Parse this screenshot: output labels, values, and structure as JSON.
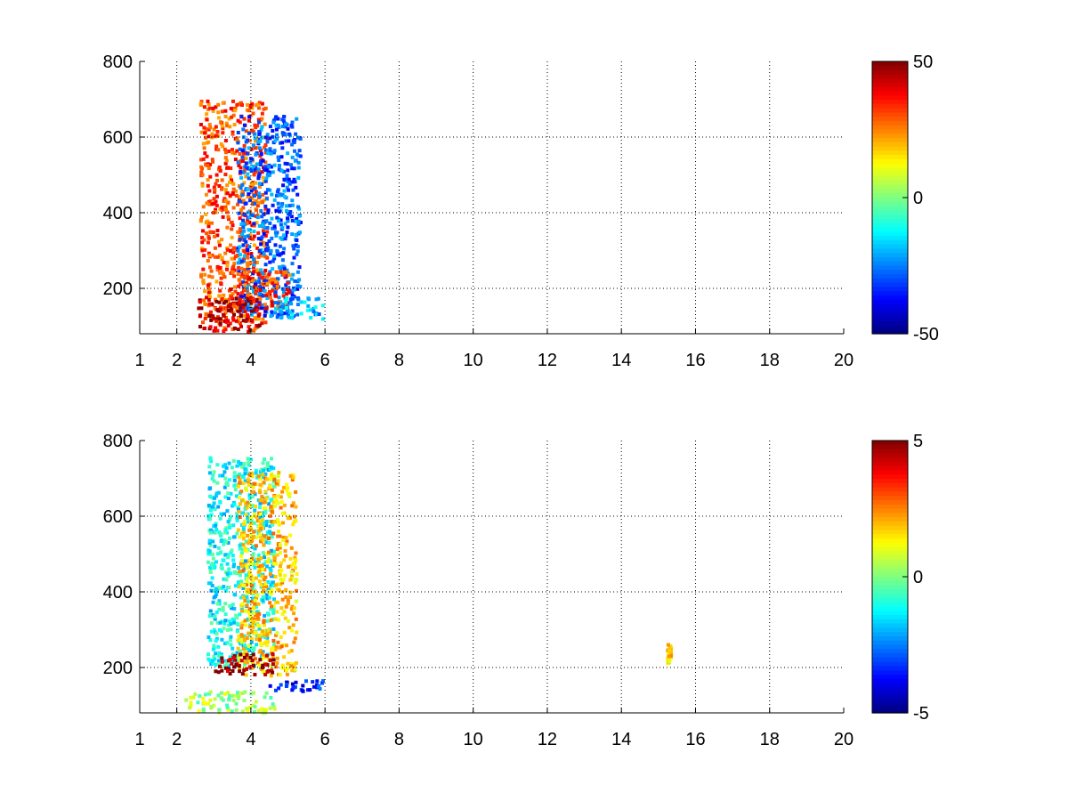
{
  "chart_data": [
    {
      "type": "heatmap",
      "title": "",
      "xlabel": "",
      "ylabel": "",
      "xlim": [
        1,
        20
      ],
      "ylim": [
        80,
        800
      ],
      "xticks": [
        1,
        2,
        4,
        6,
        8,
        10,
        12,
        14,
        16,
        18,
        20
      ],
      "xtick_labels": [
        "1",
        "2",
        "4",
        "6",
        "8",
        "10",
        "12",
        "14",
        "16",
        "18",
        "20"
      ],
      "yticks": [
        200,
        400,
        600,
        800
      ],
      "ytick_labels": [
        "200",
        "400",
        "600",
        "800"
      ],
      "grid": true,
      "colormap": "jet",
      "clim": [
        -50,
        50
      ],
      "colorbar_ticks": [
        50,
        0,
        -50
      ],
      "colorbar_labels": [
        "50",
        "0",
        "-50"
      ],
      "features": [
        {
          "x_start": 2.6,
          "x_end": 4.4,
          "y_start": 90,
          "y_end": 700,
          "value": 30
        },
        {
          "x_start": 3.6,
          "x_end": 5.3,
          "y_start": 130,
          "y_end": 660,
          "value": -28
        },
        {
          "x_start": 2.5,
          "x_end": 4.2,
          "y_start": 90,
          "y_end": 180,
          "value": 45
        },
        {
          "x_start": 3.4,
          "x_end": 5.0,
          "y_start": 150,
          "y_end": 250,
          "value": 32
        },
        {
          "x_start": 4.6,
          "x_end": 5.9,
          "y_start": 120,
          "y_end": 180,
          "value": -20
        }
      ]
    },
    {
      "type": "heatmap",
      "title": "",
      "xlabel": "",
      "ylabel": "",
      "xlim": [
        1,
        20
      ],
      "ylim": [
        80,
        800
      ],
      "xticks": [
        1,
        2,
        4,
        6,
        8,
        10,
        12,
        14,
        16,
        18,
        20
      ],
      "xtick_labels": [
        "1",
        "2",
        "4",
        "6",
        "8",
        "10",
        "12",
        "14",
        "16",
        "18",
        "20"
      ],
      "yticks": [
        200,
        400,
        600,
        800
      ],
      "ytick_labels": [
        "200",
        "400",
        "600",
        "800"
      ],
      "grid": true,
      "colormap": "jet",
      "clim": [
        -5,
        5
      ],
      "colorbar_ticks": [
        5,
        0,
        -5
      ],
      "colorbar_labels": [
        "5",
        "0",
        "-5"
      ],
      "features": [
        {
          "x_start": 2.8,
          "x_end": 4.6,
          "y_start": 200,
          "y_end": 760,
          "value": -1.2
        },
        {
          "x_start": 3.6,
          "x_end": 5.2,
          "y_start": 180,
          "y_end": 720,
          "value": 1.8
        },
        {
          "x_start": 3.0,
          "x_end": 4.6,
          "y_start": 185,
          "y_end": 240,
          "value": 4.6
        },
        {
          "x_start": 2.2,
          "x_end": 4.6,
          "y_start": 85,
          "y_end": 140,
          "value": 0.3
        },
        {
          "x_start": 4.4,
          "x_end": 5.9,
          "y_start": 140,
          "y_end": 170,
          "value": -3.5
        },
        {
          "x_start": 15.2,
          "x_end": 15.3,
          "y_start": 215,
          "y_end": 265,
          "value": 1.5
        }
      ]
    }
  ]
}
